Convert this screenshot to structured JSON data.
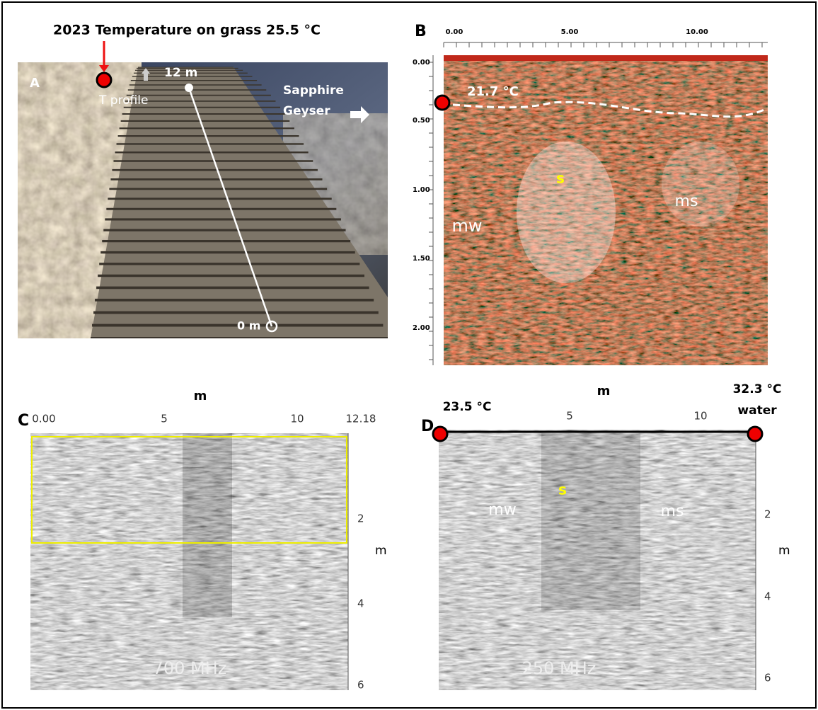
{
  "figure": {
    "panel_a": {
      "label": "A",
      "caption": "2023 Temperature on grass 25.5 °C",
      "t_profile": "T profile",
      "end_label": "12 m",
      "start_label": "0 m",
      "geyser": [
        "Sapphire",
        "Geyser"
      ]
    },
    "panel_b": {
      "label": "B",
      "x_ticks": [
        "0.00",
        "5.00",
        "10.00"
      ],
      "y_ticks": [
        "0.00",
        "0.50",
        "1.00",
        "1.50",
        "2.00"
      ],
      "temperature": "21.7 °C",
      "labels": [
        "s",
        "ms",
        "mw"
      ]
    },
    "panel_c": {
      "label": "C",
      "x_title": "m",
      "x_ticks": [
        "0.00",
        "5",
        "10",
        "12.18"
      ],
      "y_ticks": [
        "2",
        "4",
        "6"
      ],
      "y_title": "m",
      "frequency": "700 MHz"
    },
    "panel_d": {
      "label": "D",
      "x_title": "m",
      "temp_left": "23.5 °C",
      "temp_right": [
        "32.3 °C",
        "water"
      ],
      "x_ticks": [
        "5",
        "10"
      ],
      "labels": [
        "s",
        "mw",
        "ms"
      ],
      "y_ticks": [
        "2",
        "4",
        "6"
      ],
      "y_title": "m",
      "frequency": "250 MHz"
    }
  }
}
